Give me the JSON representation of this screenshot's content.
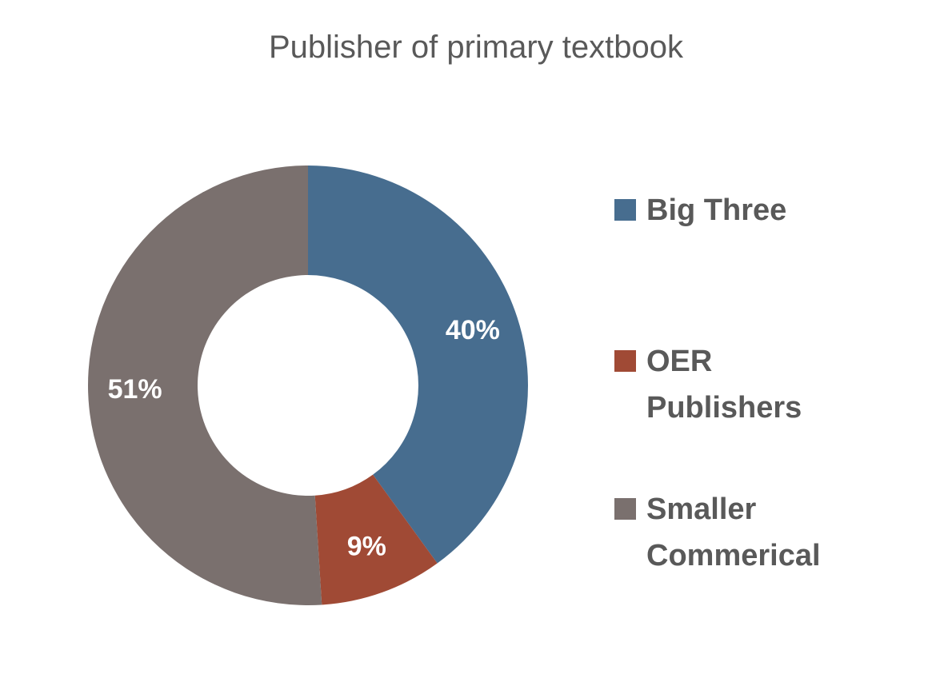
{
  "chart_data": {
    "type": "donut",
    "title": "Publisher of primary textbook",
    "categories": [
      "Big Three",
      "OER Publishers",
      "Smaller Commerical"
    ],
    "values": [
      40,
      9,
      51
    ],
    "value_labels": [
      "40%",
      "9%",
      "51%"
    ],
    "colors": [
      "#476d8f",
      "#a04a35",
      "#7a706e"
    ],
    "legend": "right"
  }
}
